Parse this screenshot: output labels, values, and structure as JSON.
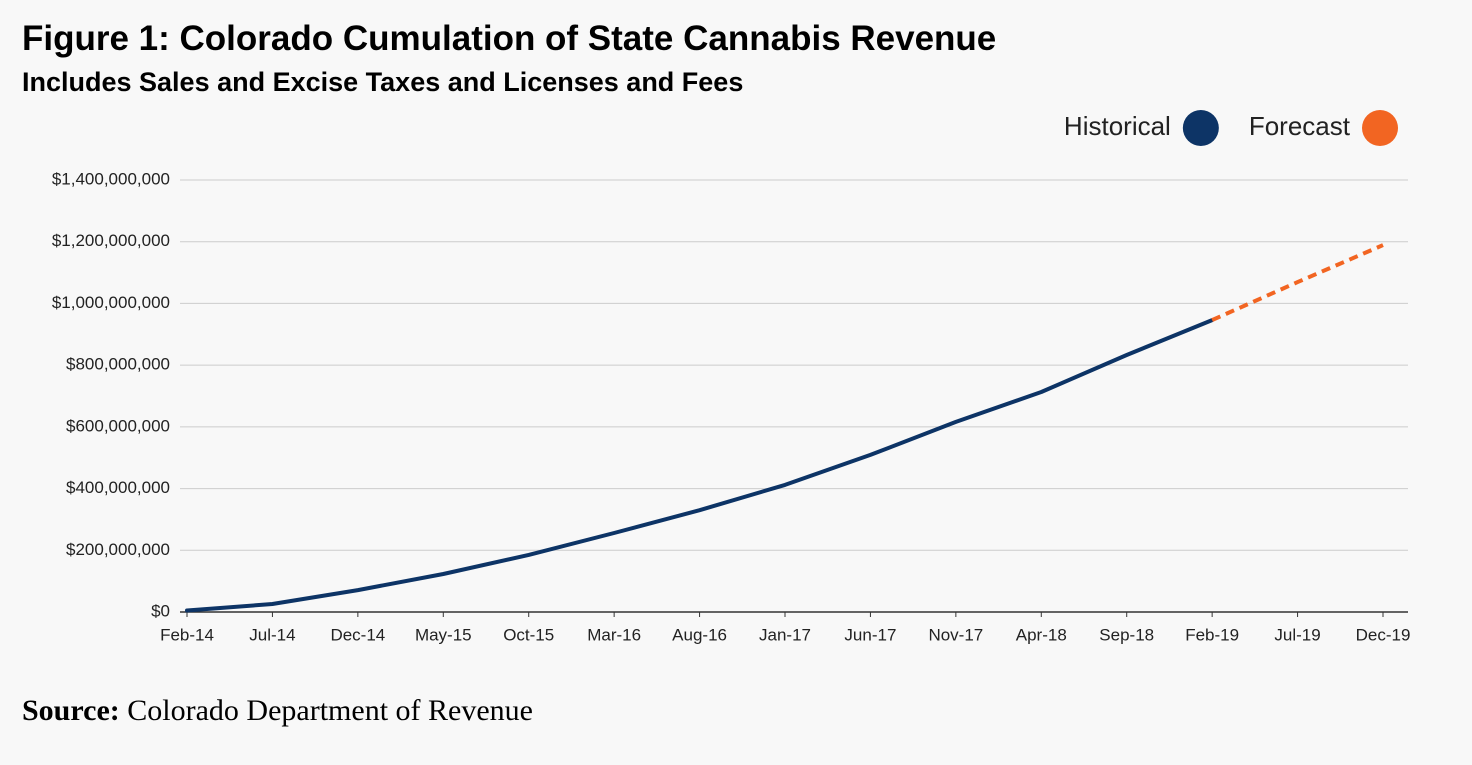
{
  "chart_data": {
    "type": "line",
    "title": "Figure 1: Colorado Cumulation of State Cannabis Revenue",
    "subtitle": "Includes Sales and Excise Taxes and Licenses and Fees",
    "categories": [
      "Feb-14",
      "Jul-14",
      "Dec-14",
      "May-15",
      "Oct-15",
      "Mar-16",
      "Aug-16",
      "Jan-17",
      "Jun-17",
      "Nov-17",
      "Apr-18",
      "Sep-18",
      "Feb-19",
      "Jul-19",
      "Dec-19"
    ],
    "series": [
      {
        "name": "Historical",
        "color": "#0d3466",
        "dashed": false,
        "values": [
          5000000,
          26000000,
          71000000,
          123000000,
          185000000,
          256000000,
          330000000,
          412000000,
          509000000,
          616000000,
          713000000,
          833000000,
          946000000,
          null,
          null
        ]
      },
      {
        "name": "Forecast",
        "color": "#f26522",
        "dashed": true,
        "values": [
          null,
          null,
          null,
          null,
          null,
          null,
          null,
          null,
          null,
          null,
          null,
          null,
          946000000,
          1069000000,
          1189000000
        ]
      }
    ],
    "ylim": [
      0,
      1400000000
    ],
    "yticks": [
      {
        "value": 0,
        "label": "$0"
      },
      {
        "value": 200000000,
        "label": "$200,000,000"
      },
      {
        "value": 400000000,
        "label": "$400,000,000"
      },
      {
        "value": 600000000,
        "label": "$600,000,000"
      },
      {
        "value": 800000000,
        "label": "$800,000,000"
      },
      {
        "value": 1000000000,
        "label": "$1,000,000,000"
      },
      {
        "value": 1200000000,
        "label": "$1,200,000,000"
      },
      {
        "value": 1400000000,
        "label": "$1,400,000,000"
      }
    ],
    "grid": true,
    "legend": "top-right",
    "source_label": "Source:",
    "source": "Colorado Department of Revenue"
  }
}
